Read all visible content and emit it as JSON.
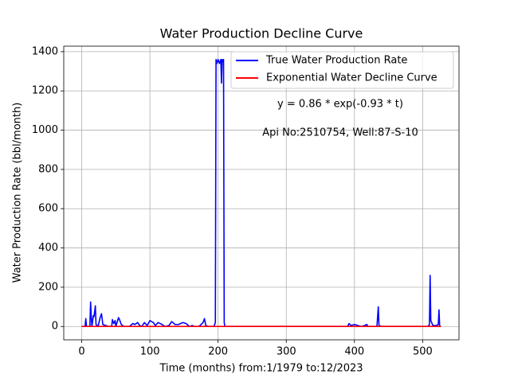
{
  "chart_data": {
    "type": "line",
    "title": "Water Production Decline Curve",
    "x_label": "Time (months) from:1/1979 to:12/2023",
    "y_label": "Water Production Rate (bbl/month)",
    "annotations": [
      "y = 0.86 * exp(-0.93 * t)",
      "Api No:2510754, Well:87-S-10"
    ],
    "xlim": [
      -26.35,
      553.35
    ],
    "ylim": [
      -68,
      1428
    ],
    "xticks": [
      0,
      100,
      200,
      300,
      400,
      500
    ],
    "yticks": [
      0,
      200,
      400,
      600,
      800,
      1000,
      1200,
      1400
    ],
    "grid": true,
    "legend": "upper right",
    "series": [
      {
        "name": "True Water Production Rate",
        "color": "#0000ff",
        "x": [
          0,
          5,
          6,
          7,
          12,
          13,
          14,
          15,
          17,
          18,
          20,
          21,
          24,
          27,
          29,
          31,
          35,
          40,
          44,
          45,
          47,
          49,
          50,
          54,
          56,
          58,
          62,
          70,
          75,
          78,
          82,
          85,
          88,
          92,
          96,
          100,
          105,
          108,
          112,
          118,
          122,
          128,
          132,
          137,
          142,
          148,
          153,
          158,
          162,
          165,
          172,
          178,
          180,
          182,
          186,
          194,
          196,
          197,
          198,
          200,
          202,
          204,
          205,
          206,
          207,
          208,
          209,
          210,
          390,
          392,
          395,
          400,
          405,
          410,
          415,
          418,
          420,
          433,
          435,
          436,
          440,
          508,
          510,
          511,
          512,
          515,
          520,
          523,
          524,
          525,
          527
        ],
        "values": [
          0,
          0,
          40,
          0,
          0,
          125,
          50,
          0,
          55,
          50,
          105,
          10,
          0,
          45,
          65,
          10,
          5,
          0,
          0,
          35,
          15,
          30,
          0,
          45,
          30,
          10,
          0,
          0,
          15,
          10,
          20,
          5,
          0,
          20,
          5,
          30,
          20,
          5,
          20,
          10,
          0,
          5,
          25,
          10,
          10,
          20,
          15,
          0,
          5,
          0,
          0,
          20,
          40,
          5,
          0,
          0,
          20,
          1360,
          1340,
          1360,
          1340,
          1360,
          1240,
          1360,
          1350,
          1360,
          20,
          0,
          0,
          15,
          5,
          10,
          5,
          0,
          5,
          10,
          0,
          0,
          100,
          5,
          0,
          0,
          10,
          260,
          30,
          5,
          5,
          10,
          85,
          0,
          0
        ]
      },
      {
        "name": "Exponential Water Decline Curve",
        "color": "#ff0000",
        "x": [
          0,
          1,
          2,
          5,
          527
        ],
        "values": [
          0.86,
          0.34,
          0.13,
          0.008,
          0
        ]
      }
    ]
  }
}
